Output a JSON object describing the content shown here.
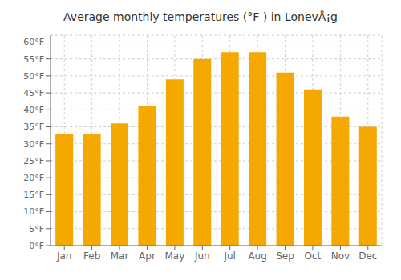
{
  "chart_data": {
    "type": "bar",
    "title": "Average monthly temperatures (°F ) in LonevÅ¡g",
    "categories": [
      "Jan",
      "Feb",
      "Mar",
      "Apr",
      "May",
      "Jun",
      "Jul",
      "Aug",
      "Sep",
      "Oct",
      "Nov",
      "Dec"
    ],
    "values": [
      33,
      33,
      36,
      41,
      49,
      55,
      57,
      57,
      51,
      46,
      38,
      35
    ],
    "color": "#F5A800",
    "ylim": [
      0,
      62
    ],
    "yticks": [
      {
        "value": 0,
        "label": "0°F"
      },
      {
        "value": 5,
        "label": "5°F"
      },
      {
        "value": 10,
        "label": "10°F"
      },
      {
        "value": 15,
        "label": "15°F"
      },
      {
        "value": 20,
        "label": "20°F"
      },
      {
        "value": 25,
        "label": "25°F"
      },
      {
        "value": 30,
        "label": "30°F"
      },
      {
        "value": 35,
        "label": "35°F"
      },
      {
        "value": 40,
        "label": "40°F"
      },
      {
        "value": 45,
        "label": "45°F"
      },
      {
        "value": 50,
        "label": "50°F"
      },
      {
        "value": 55,
        "label": "55°F"
      },
      {
        "value": 60,
        "label": "60°F"
      }
    ],
    "grid": true
  }
}
